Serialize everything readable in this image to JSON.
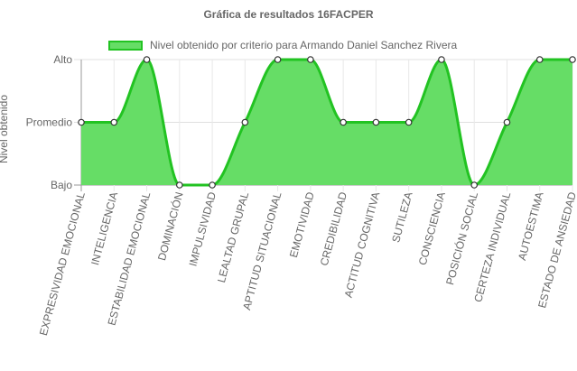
{
  "chart_data": {
    "type": "line",
    "title": "Gráfica de resultados 16FACPER",
    "ylabel": "Nivel obtenido",
    "xlabel": "",
    "y_levels": [
      "Bajo",
      "Promedio",
      "Alto"
    ],
    "ylim": [
      0,
      2
    ],
    "categories": [
      "EXPRESIVIDAD EMOCIONAL",
      "INTELIGENCIA",
      "ESTABILIDAD EMOCIONAL",
      "DOMINACIÓN",
      "IMPULSIVIDAD",
      "LEALTAD GRUPAL",
      "APTITUD SITUACIONAL",
      "EMOTIVIDAD",
      "CREDIBILIDAD",
      "ACTITUD COGNITIVA",
      "SUTILEZA",
      "CONSCIENCIA",
      "POSICIÓN SOCIAL",
      "CERTEZA INDIVIDUAL",
      "AUTOESTIMA",
      "ESTADO DE ANSIEDAD"
    ],
    "series": [
      {
        "name": "Nivel obtenido por criterio para Armando Daniel Sanchez Rivera",
        "values": [
          1,
          1,
          2,
          0,
          0,
          1,
          2,
          2,
          1,
          1,
          1,
          2,
          0,
          1,
          2,
          2
        ],
        "fill_color": "#66dd66",
        "line_color": "#22c322"
      }
    ],
    "filled": true,
    "smooth": true,
    "grid": true,
    "legend_position": "top"
  }
}
